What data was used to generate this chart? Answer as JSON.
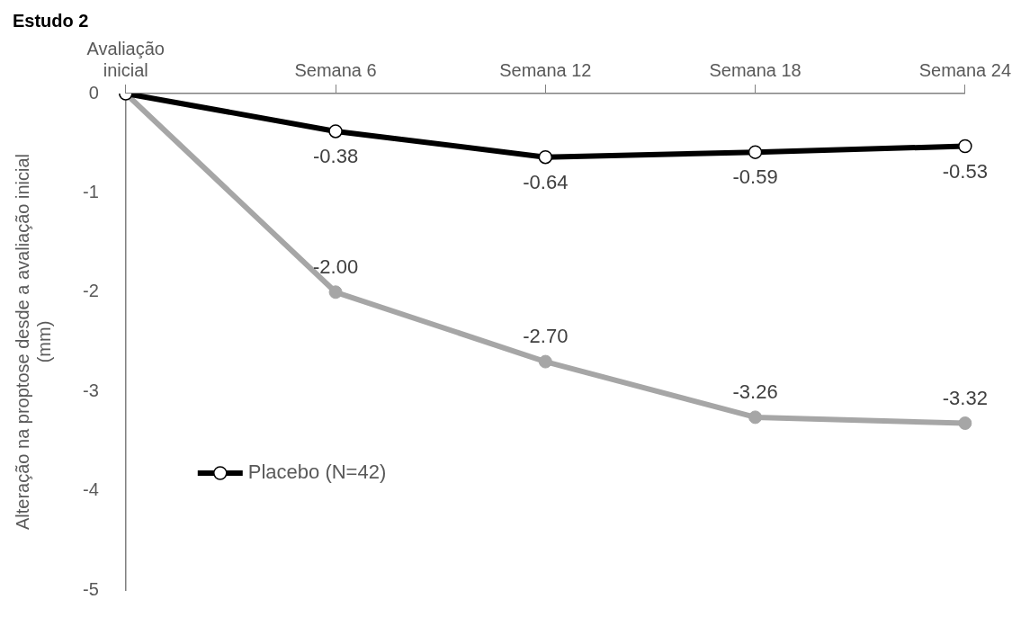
{
  "chart_data": {
    "type": "line",
    "title": "Estudo 2",
    "ylabel": "Alteração na proptose desde a avaliação inicial (mm)",
    "categories": [
      "Avaliação inicial",
      "Semana 6",
      "Semana 12",
      "Semana 18",
      "Semana 24"
    ],
    "series": [
      {
        "name": "Placebo (N=42)",
        "color": "#000000",
        "values": [
          0,
          -0.38,
          -0.64,
          -0.59,
          -0.53
        ],
        "value_labels": [
          null,
          "-0.38",
          "-0.64",
          "-0.59",
          "-0.53"
        ]
      },
      {
        "color": "#a6a6a6",
        "values": [
          0,
          -2.0,
          -2.7,
          -3.26,
          -3.32
        ],
        "value_labels": [
          null,
          "-2.00",
          "-2.70",
          "-3.26",
          "-3.32"
        ]
      }
    ],
    "ylim": [
      -5,
      0
    ],
    "yticks": [
      0,
      -1,
      -2,
      -3,
      -4,
      -5
    ],
    "marker": "circle",
    "legend": "bottom left",
    "grid": false
  }
}
